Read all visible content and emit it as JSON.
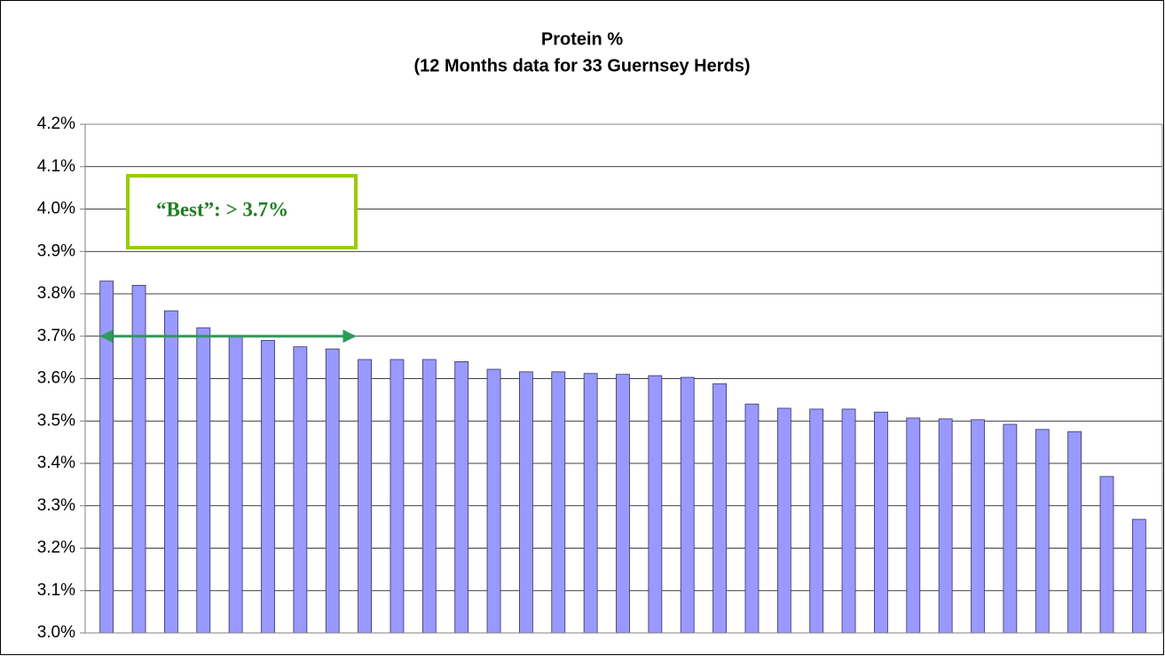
{
  "chart_data": {
    "type": "bar",
    "title": "Protein %",
    "subtitle": "(12 Months data for 33 Guernsey Herds)",
    "values": [
      3.83,
      3.82,
      3.76,
      3.72,
      3.7,
      3.69,
      3.675,
      3.67,
      3.645,
      3.645,
      3.645,
      3.64,
      3.622,
      3.616,
      3.616,
      3.612,
      3.61,
      3.607,
      3.603,
      3.588,
      3.54,
      3.53,
      3.528,
      3.528,
      3.521,
      3.507,
      3.505,
      3.503,
      3.492,
      3.48,
      3.475,
      3.369,
      3.268
    ],
    "color": "#9999ff",
    "ylim": [
      3.0,
      4.2
    ],
    "yticks": [
      {
        "value": 3.0,
        "label": "3.0%"
      },
      {
        "value": 3.1,
        "label": "3.1%"
      },
      {
        "value": 3.2,
        "label": "3.2%"
      },
      {
        "value": 3.3,
        "label": "3.3%"
      },
      {
        "value": 3.4,
        "label": "3.4%"
      },
      {
        "value": 3.5,
        "label": "3.5%"
      },
      {
        "value": 3.6,
        "label": "3.6%"
      },
      {
        "value": 3.7,
        "label": "3.7%"
      },
      {
        "value": 3.8,
        "label": "3.8%"
      },
      {
        "value": 3.9,
        "label": "3.9%"
      },
      {
        "value": 4.0,
        "label": "4.0%"
      },
      {
        "value": 4.1,
        "label": "4.1%"
      },
      {
        "value": 4.2,
        "label": "4.2%"
      }
    ],
    "grid": true,
    "annotation": {
      "text": "“Best”:  > 3.7%",
      "threshold": 3.7,
      "color": "#2e9a5a"
    }
  }
}
